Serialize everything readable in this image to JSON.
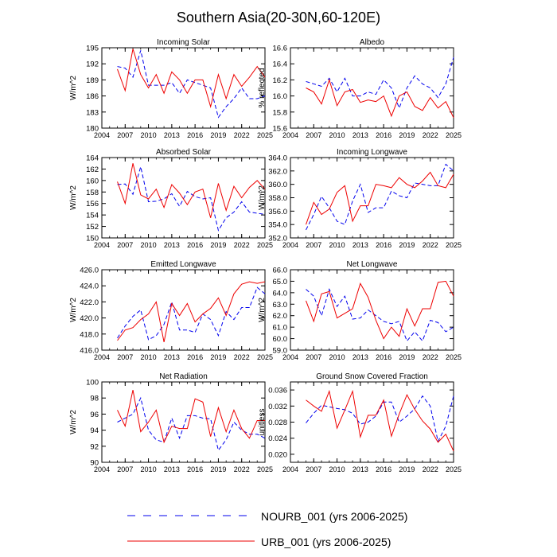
{
  "title": "Southern Asia(20-30N,60-120E)",
  "colors": {
    "nourb": "#0000ee",
    "urb": "#ee0000",
    "axis": "#000000"
  },
  "legend": {
    "entries": [
      {
        "label": "NOURB_001 (yrs 2006-2025)",
        "color": "#0000ee",
        "style": "dashed"
      },
      {
        "label": "URB_001 (yrs 2006-2025)",
        "color": "#ee0000",
        "style": "solid"
      }
    ]
  },
  "chart_data": [
    {
      "type": "line",
      "title": "Incoming Solar",
      "ylabel": "W/m^2",
      "xlim": [
        2004,
        2025
      ],
      "xticks": [
        "2004",
        "2007",
        "2010",
        "2013",
        "2016",
        "2019",
        "2022",
        "2025"
      ],
      "ylim": [
        180,
        195
      ],
      "yticks": [
        "180",
        "183",
        "186",
        "189",
        "192",
        "195"
      ],
      "x": [
        2006,
        2007,
        2008,
        2009,
        2010,
        2011,
        2012,
        2013,
        2014,
        2015,
        2016,
        2017,
        2018,
        2019,
        2020,
        2021,
        2022,
        2023,
        2024,
        2025
      ],
      "series": [
        {
          "name": "NOURB_001 (yrs 2006-2025)",
          "values": [
            191.5,
            191.2,
            189.5,
            194.5,
            188.0,
            188.0,
            188.0,
            188.5,
            186.5,
            189.0,
            188.5,
            188.0,
            187.5,
            182.0,
            184.0,
            185.5,
            187.5,
            185.5,
            185.5,
            186.0
          ]
        },
        {
          "name": "URB_001 (yrs 2006-2025)",
          "values": [
            191.0,
            187.0,
            194.8,
            190.0,
            187.5,
            190.0,
            186.5,
            190.5,
            189.0,
            186.5,
            189.0,
            189.0,
            184.0,
            190.0,
            185.5,
            190.0,
            187.8,
            189.5,
            191.5,
            189.5
          ]
        }
      ]
    },
    {
      "type": "line",
      "title": "Albedo",
      "ylabel": "% reflected",
      "xlim": [
        2004,
        2025
      ],
      "xticks": [
        "2004",
        "2007",
        "2010",
        "2013",
        "2016",
        "2019",
        "2022",
        "2025"
      ],
      "ylim": [
        15.6,
        16.6
      ],
      "yticks": [
        "15.6",
        "15.8",
        "16.0",
        "16.2",
        "16.4",
        "16.6"
      ],
      "x": [
        2006,
        2007,
        2008,
        2009,
        2010,
        2011,
        2012,
        2013,
        2014,
        2015,
        2016,
        2017,
        2018,
        2019,
        2020,
        2021,
        2022,
        2023,
        2024,
        2025
      ],
      "series": [
        {
          "name": "NOURB_001 (yrs 2006-2025)",
          "values": [
            16.18,
            16.15,
            16.12,
            16.22,
            16.05,
            16.22,
            16.0,
            16.0,
            16.05,
            16.02,
            16.2,
            16.1,
            15.85,
            16.1,
            16.25,
            16.15,
            16.1,
            15.98,
            16.15,
            16.48
          ]
        },
        {
          "name": "URB_001 (yrs 2006-2025)",
          "values": [
            16.1,
            16.05,
            15.9,
            16.2,
            15.88,
            16.05,
            16.08,
            15.92,
            15.95,
            15.93,
            16.0,
            15.75,
            16.0,
            16.05,
            15.87,
            15.82,
            15.98,
            15.85,
            15.93,
            15.73
          ]
        }
      ]
    },
    {
      "type": "line",
      "title": "Absorbed Solar",
      "ylabel": "W/m^2",
      "xlim": [
        2004,
        2025
      ],
      "xticks": [
        "2004",
        "2007",
        "2010",
        "2013",
        "2016",
        "2019",
        "2022",
        "2025"
      ],
      "ylim": [
        150,
        164
      ],
      "yticks": [
        "150",
        "152",
        "154",
        "156",
        "158",
        "160",
        "162",
        "164"
      ],
      "x": [
        2006,
        2007,
        2008,
        2009,
        2010,
        2011,
        2012,
        2013,
        2014,
        2015,
        2016,
        2017,
        2018,
        2019,
        2020,
        2021,
        2022,
        2023,
        2024,
        2025
      ],
      "series": [
        {
          "name": "NOURB_001 (yrs 2006-2025)",
          "values": [
            159.3,
            159.4,
            157.6,
            162.4,
            156.3,
            156.4,
            156.8,
            157.7,
            155.5,
            158.1,
            157.2,
            156.8,
            157.0,
            151.3,
            153.5,
            154.5,
            156.3,
            154.5,
            154.3,
            154.1
          ]
        },
        {
          "name": "URB_001 (yrs 2006-2025)",
          "values": [
            159.8,
            156.0,
            163.0,
            157.5,
            156.8,
            158.5,
            155.3,
            159.3,
            157.8,
            155.8,
            158.0,
            158.5,
            153.5,
            159.5,
            154.8,
            159.0,
            157.0,
            158.8,
            160.0,
            158.5
          ]
        }
      ]
    },
    {
      "type": "line",
      "title": "Incoming Longwave",
      "ylabel": "W/m^2",
      "xlim": [
        2004,
        2025
      ],
      "xticks": [
        "2004",
        "2007",
        "2010",
        "2013",
        "2016",
        "2019",
        "2022",
        "2025"
      ],
      "ylim": [
        352.0,
        364.0
      ],
      "yticks": [
        "352.0",
        "354.0",
        "356.0",
        "358.0",
        "360.0",
        "362.0",
        "364.0"
      ],
      "x": [
        2006,
        2007,
        2008,
        2009,
        2010,
        2011,
        2012,
        2013,
        2014,
        2015,
        2016,
        2017,
        2018,
        2019,
        2020,
        2021,
        2022,
        2023,
        2024,
        2025
      ],
      "series": [
        {
          "name": "NOURB_001 (yrs 2006-2025)",
          "values": [
            353.2,
            355.5,
            358.2,
            356.5,
            354.5,
            354.0,
            357.5,
            360.0,
            355.8,
            356.5,
            356.5,
            359.0,
            358.3,
            358.0,
            360.2,
            360.0,
            359.8,
            359.8,
            363.0,
            362.0
          ]
        },
        {
          "name": "URB_001 (yrs 2006-2025)",
          "values": [
            354.0,
            357.3,
            355.5,
            356.3,
            358.8,
            359.8,
            354.5,
            356.8,
            356.8,
            360.0,
            359.8,
            359.5,
            361.0,
            360.0,
            359.5,
            360.5,
            361.8,
            359.8,
            359.5,
            361.5
          ]
        }
      ]
    },
    {
      "type": "line",
      "title": "Emitted Longwave",
      "ylabel": "W/m^2",
      "xlim": [
        2004,
        2025
      ],
      "xticks": [
        "2004",
        "2007",
        "2010",
        "2013",
        "2016",
        "2019",
        "2022",
        "2025"
      ],
      "ylim": [
        416.0,
        426.0
      ],
      "yticks": [
        "416.0",
        "418.0",
        "420.0",
        "422.0",
        "424.0",
        "426.0"
      ],
      "x": [
        2006,
        2007,
        2008,
        2009,
        2010,
        2011,
        2012,
        2013,
        2014,
        2015,
        2016,
        2017,
        2018,
        2019,
        2020,
        2021,
        2022,
        2023,
        2024,
        2025
      ],
      "series": [
        {
          "name": "NOURB_001 (yrs 2006-2025)",
          "values": [
            417.5,
            419.0,
            420.2,
            421.0,
            417.3,
            417.8,
            419.2,
            422.0,
            418.5,
            418.5,
            418.2,
            420.5,
            419.8,
            417.8,
            420.8,
            419.8,
            421.3,
            421.3,
            423.8,
            423.0
          ]
        },
        {
          "name": "URB_001 (yrs 2006-2025)",
          "values": [
            417.2,
            418.5,
            418.8,
            419.8,
            420.5,
            422.0,
            417.0,
            421.8,
            420.3,
            421.8,
            419.5,
            420.5,
            421.2,
            422.5,
            420.3,
            423.0,
            424.2,
            424.5,
            424.3,
            424.5
          ]
        }
      ]
    },
    {
      "type": "line",
      "title": "Net Longwave",
      "ylabel": "W/m^2",
      "xlim": [
        2004,
        2025
      ],
      "xticks": [
        "2004",
        "2007",
        "2010",
        "2013",
        "2016",
        "2019",
        "2022",
        "2025"
      ],
      "ylim": [
        59.0,
        66.0
      ],
      "yticks": [
        "59.0",
        "60.0",
        "61.0",
        "62.0",
        "63.0",
        "64.0",
        "65.0",
        "66.0"
      ],
      "x": [
        2006,
        2007,
        2008,
        2009,
        2010,
        2011,
        2012,
        2013,
        2014,
        2015,
        2016,
        2017,
        2018,
        2019,
        2020,
        2021,
        2022,
        2023,
        2024,
        2025
      ],
      "series": [
        {
          "name": "NOURB_001 (yrs 2006-2025)",
          "values": [
            64.3,
            63.7,
            62.0,
            64.3,
            62.8,
            63.7,
            61.7,
            61.8,
            62.5,
            62.0,
            61.5,
            61.3,
            61.5,
            59.8,
            60.6,
            59.8,
            61.6,
            61.4,
            60.6,
            61.0
          ]
        },
        {
          "name": "URB_001 (yrs 2006-2025)",
          "values": [
            63.3,
            61.5,
            63.9,
            64.1,
            61.8,
            62.2,
            62.6,
            64.8,
            63.6,
            61.6,
            60.0,
            61.0,
            60.2,
            62.6,
            61.1,
            62.6,
            62.6,
            64.9,
            65.0,
            63.7
          ]
        }
      ]
    },
    {
      "type": "line",
      "title": "Net Radiation",
      "ylabel": "W/m^2",
      "xlim": [
        2004,
        2025
      ],
      "xticks": [
        "2004",
        "2007",
        "2010",
        "2013",
        "2016",
        "2019",
        "2022",
        "2025"
      ],
      "ylim": [
        90,
        100
      ],
      "yticks": [
        "90",
        "92",
        "94",
        "96",
        "98",
        "100"
      ],
      "x": [
        2006,
        2007,
        2008,
        2009,
        2010,
        2011,
        2012,
        2013,
        2014,
        2015,
        2016,
        2017,
        2018,
        2019,
        2020,
        2021,
        2022,
        2023,
        2024,
        2025
      ],
      "series": [
        {
          "name": "NOURB_001 (yrs 2006-2025)",
          "values": [
            95.0,
            95.5,
            96.0,
            98.0,
            94.0,
            92.8,
            92.5,
            95.5,
            93.0,
            95.8,
            95.8,
            95.5,
            95.4,
            91.5,
            92.8,
            95.0,
            94.0,
            93.5,
            93.5,
            93.0
          ]
        },
        {
          "name": "URB_001 (yrs 2006-2025)",
          "values": [
            96.5,
            94.5,
            99.0,
            93.8,
            95.0,
            96.5,
            92.5,
            94.5,
            94.2,
            94.2,
            97.9,
            97.5,
            93.2,
            96.8,
            93.8,
            96.5,
            94.2,
            93.0,
            95.2,
            95.2
          ]
        }
      ]
    },
    {
      "type": "line",
      "title": "Ground Snow Covered Fraction",
      "ylabel": "unitless",
      "xlim": [
        2004,
        2025
      ],
      "xticks": [
        "2004",
        "2007",
        "2010",
        "2013",
        "2016",
        "2019",
        "2022",
        "2025"
      ],
      "ylim": [
        0.018,
        0.038
      ],
      "yticks": [
        "0.020",
        "0.024",
        "0.028",
        "0.032",
        "0.036"
      ],
      "x": [
        2006,
        2007,
        2008,
        2009,
        2010,
        2011,
        2012,
        2013,
        2014,
        2015,
        2016,
        2017,
        2018,
        2019,
        2020,
        2021,
        2022,
        2023,
        2024,
        2025
      ],
      "series": [
        {
          "name": "NOURB_001 (yrs 2006-2025)",
          "values": [
            0.0278,
            0.0302,
            0.0322,
            0.0318,
            0.0314,
            0.0311,
            0.0302,
            0.0275,
            0.028,
            0.0295,
            0.033,
            0.033,
            0.028,
            0.0295,
            0.0313,
            0.0345,
            0.032,
            0.0232,
            0.027,
            0.0345
          ]
        },
        {
          "name": "URB_001 (yrs 2006-2025)",
          "values": [
            0.0335,
            0.032,
            0.0307,
            0.0357,
            0.0265,
            0.031,
            0.0357,
            0.0243,
            0.0297,
            0.0297,
            0.0335,
            0.0245,
            0.03,
            0.0348,
            0.0312,
            0.0283,
            0.0263,
            0.023,
            0.025,
            0.0208
          ]
        }
      ]
    }
  ]
}
